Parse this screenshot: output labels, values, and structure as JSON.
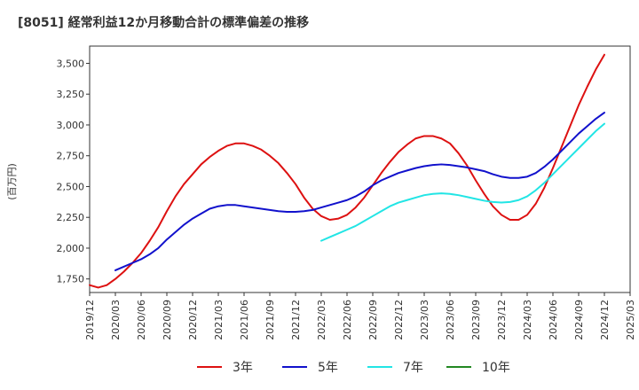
{
  "chart_data": {
    "type": "line",
    "title": "[8051]  経常利益12か月移動合計の標準偏差の推移",
    "ylabel": "(百万円)",
    "xlabel": "",
    "ylim": [
      1640,
      3640
    ],
    "yticks": [
      1750,
      2000,
      2250,
      2500,
      2750,
      3000,
      3250,
      3500
    ],
    "ytick_labels": [
      "1,750",
      "2,000",
      "2,250",
      "2,500",
      "2,750",
      "3,000",
      "3,250",
      "3,500"
    ],
    "xlim": [
      "2019-12",
      "2025-03"
    ],
    "xticks": [
      "2019/12",
      "2020/03",
      "2020/06",
      "2020/09",
      "2020/12",
      "2021/03",
      "2021/06",
      "2021/09",
      "2021/12",
      "2022/03",
      "2022/06",
      "2022/09",
      "2022/12",
      "2023/03",
      "2023/06",
      "2023/09",
      "2023/12",
      "2024/03",
      "2024/06",
      "2024/09",
      "2024/12",
      "2025/03"
    ],
    "grid": true,
    "legend_position": "bottom",
    "series": [
      {
        "name": "3年",
        "color": "#dd1111",
        "points": [
          [
            "2019-12",
            1700
          ],
          [
            "2020-01",
            1680
          ],
          [
            "2020-02",
            1700
          ],
          [
            "2020-03",
            1750
          ],
          [
            "2020-04",
            1810
          ],
          [
            "2020-05",
            1880
          ],
          [
            "2020-06",
            1960
          ],
          [
            "2020-07",
            2060
          ],
          [
            "2020-08",
            2170
          ],
          [
            "2020-09",
            2300
          ],
          [
            "2020-10",
            2420
          ],
          [
            "2020-11",
            2520
          ],
          [
            "2020-12",
            2600
          ],
          [
            "2021-01",
            2680
          ],
          [
            "2021-02",
            2740
          ],
          [
            "2021-03",
            2790
          ],
          [
            "2021-04",
            2830
          ],
          [
            "2021-05",
            2850
          ],
          [
            "2021-06",
            2850
          ],
          [
            "2021-07",
            2830
          ],
          [
            "2021-08",
            2800
          ],
          [
            "2021-09",
            2750
          ],
          [
            "2021-10",
            2690
          ],
          [
            "2021-11",
            2610
          ],
          [
            "2021-12",
            2520
          ],
          [
            "2022-01",
            2410
          ],
          [
            "2022-02",
            2320
          ],
          [
            "2022-03",
            2260
          ],
          [
            "2022-04",
            2230
          ],
          [
            "2022-05",
            2240
          ],
          [
            "2022-06",
            2270
          ],
          [
            "2022-07",
            2330
          ],
          [
            "2022-08",
            2410
          ],
          [
            "2022-09",
            2510
          ],
          [
            "2022-10",
            2610
          ],
          [
            "2022-11",
            2700
          ],
          [
            "2022-12",
            2780
          ],
          [
            "2023-01",
            2840
          ],
          [
            "2023-02",
            2890
          ],
          [
            "2023-03",
            2910
          ],
          [
            "2023-04",
            2910
          ],
          [
            "2023-05",
            2890
          ],
          [
            "2023-06",
            2850
          ],
          [
            "2023-07",
            2770
          ],
          [
            "2023-08",
            2670
          ],
          [
            "2023-09",
            2550
          ],
          [
            "2023-10",
            2440
          ],
          [
            "2023-11",
            2340
          ],
          [
            "2023-12",
            2270
          ],
          [
            "2024-01",
            2230
          ],
          [
            "2024-02",
            2230
          ],
          [
            "2024-03",
            2270
          ],
          [
            "2024-04",
            2360
          ],
          [
            "2024-05",
            2490
          ],
          [
            "2024-06",
            2650
          ],
          [
            "2024-07",
            2820
          ],
          [
            "2024-08",
            2990
          ],
          [
            "2024-09",
            3160
          ],
          [
            "2024-10",
            3310
          ],
          [
            "2024-11",
            3450
          ],
          [
            "2024-12",
            3570
          ]
        ]
      },
      {
        "name": "5年",
        "color": "#1111cc",
        "points": [
          [
            "2020-03",
            1820
          ],
          [
            "2020-04",
            1850
          ],
          [
            "2020-05",
            1880
          ],
          [
            "2020-06",
            1910
          ],
          [
            "2020-07",
            1950
          ],
          [
            "2020-08",
            2000
          ],
          [
            "2020-09",
            2070
          ],
          [
            "2020-10",
            2130
          ],
          [
            "2020-11",
            2190
          ],
          [
            "2020-12",
            2240
          ],
          [
            "2021-01",
            2280
          ],
          [
            "2021-02",
            2320
          ],
          [
            "2021-03",
            2340
          ],
          [
            "2021-04",
            2350
          ],
          [
            "2021-05",
            2350
          ],
          [
            "2021-06",
            2340
          ],
          [
            "2021-07",
            2330
          ],
          [
            "2021-08",
            2320
          ],
          [
            "2021-09",
            2310
          ],
          [
            "2021-10",
            2300
          ],
          [
            "2021-11",
            2295
          ],
          [
            "2021-12",
            2295
          ],
          [
            "2022-01",
            2300
          ],
          [
            "2022-02",
            2310
          ],
          [
            "2022-03",
            2330
          ],
          [
            "2022-04",
            2350
          ],
          [
            "2022-05",
            2370
          ],
          [
            "2022-06",
            2390
          ],
          [
            "2022-07",
            2420
          ],
          [
            "2022-08",
            2460
          ],
          [
            "2022-09",
            2510
          ],
          [
            "2022-10",
            2550
          ],
          [
            "2022-11",
            2580
          ],
          [
            "2022-12",
            2610
          ],
          [
            "2023-01",
            2630
          ],
          [
            "2023-02",
            2650
          ],
          [
            "2023-03",
            2665
          ],
          [
            "2023-04",
            2675
          ],
          [
            "2023-05",
            2680
          ],
          [
            "2023-06",
            2675
          ],
          [
            "2023-07",
            2665
          ],
          [
            "2023-08",
            2655
          ],
          [
            "2023-09",
            2640
          ],
          [
            "2023-10",
            2625
          ],
          [
            "2023-11",
            2600
          ],
          [
            "2023-12",
            2580
          ],
          [
            "2024-01",
            2570
          ],
          [
            "2024-02",
            2570
          ],
          [
            "2024-03",
            2580
          ],
          [
            "2024-04",
            2610
          ],
          [
            "2024-05",
            2660
          ],
          [
            "2024-06",
            2720
          ],
          [
            "2024-07",
            2790
          ],
          [
            "2024-08",
            2860
          ],
          [
            "2024-09",
            2930
          ],
          [
            "2024-10",
            2990
          ],
          [
            "2024-11",
            3050
          ],
          [
            "2024-12",
            3100
          ]
        ]
      },
      {
        "name": "7年",
        "color": "#22e5e5",
        "points": [
          [
            "2022-03",
            2060
          ],
          [
            "2022-04",
            2090
          ],
          [
            "2022-05",
            2120
          ],
          [
            "2022-06",
            2150
          ],
          [
            "2022-07",
            2180
          ],
          [
            "2022-08",
            2220
          ],
          [
            "2022-09",
            2260
          ],
          [
            "2022-10",
            2300
          ],
          [
            "2022-11",
            2340
          ],
          [
            "2022-12",
            2370
          ],
          [
            "2023-01",
            2390
          ],
          [
            "2023-02",
            2410
          ],
          [
            "2023-03",
            2430
          ],
          [
            "2023-04",
            2440
          ],
          [
            "2023-05",
            2445
          ],
          [
            "2023-06",
            2440
          ],
          [
            "2023-07",
            2430
          ],
          [
            "2023-08",
            2415
          ],
          [
            "2023-09",
            2400
          ],
          [
            "2023-10",
            2385
          ],
          [
            "2023-11",
            2375
          ],
          [
            "2023-12",
            2370
          ],
          [
            "2024-01",
            2375
          ],
          [
            "2024-02",
            2390
          ],
          [
            "2024-03",
            2420
          ],
          [
            "2024-04",
            2470
          ],
          [
            "2024-05",
            2530
          ],
          [
            "2024-06",
            2600
          ],
          [
            "2024-07",
            2670
          ],
          [
            "2024-08",
            2740
          ],
          [
            "2024-09",
            2810
          ],
          [
            "2024-10",
            2880
          ],
          [
            "2024-11",
            2950
          ],
          [
            "2024-12",
            3010
          ]
        ]
      },
      {
        "name": "10年",
        "color": "#228822",
        "points": []
      }
    ]
  }
}
